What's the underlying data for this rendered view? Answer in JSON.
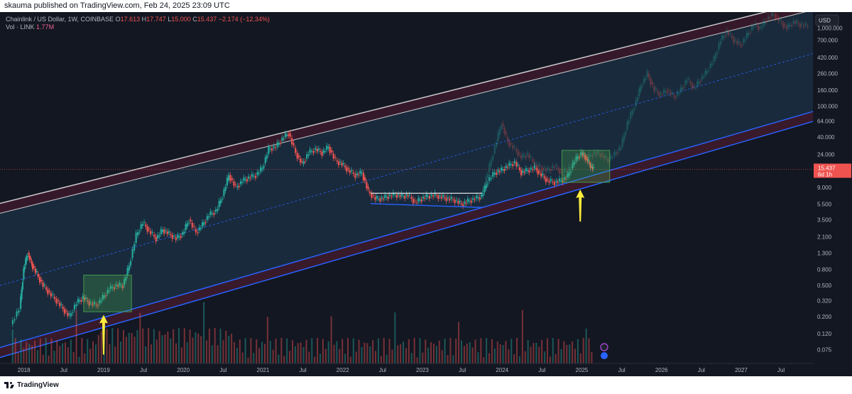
{
  "header": {
    "published": "skauma published on TradingView.com, Feb 24, 2025 23:09 UTC"
  },
  "legend": {
    "symbol": "Chainlink / US Dollar, 1W, COINBASE",
    "open_label": "O",
    "open": "17.613",
    "high_label": "H",
    "high": "17.747",
    "low_label": "L",
    "low": "15.000",
    "close_label": "C",
    "close": "15.437",
    "change": "−2.174 (−12.34%)",
    "vol_label": "Vol · LINK",
    "vol": "1.77M"
  },
  "price_axis": {
    "currency": "USD",
    "last_price": "15.437",
    "countdown": "6d 1h"
  },
  "footer": {
    "brand": "TradingView"
  },
  "colors": {
    "background": "#131722",
    "up": "#26a69a",
    "down": "#ef5350",
    "channel_fill": "#1e3a52",
    "upper_band": "#3a1a2c",
    "lower_band": "#3a1a2c",
    "support_line": "#2962ff",
    "arrow": "#ffeb3b",
    "box": "#4caf50",
    "projection": "#9aa3ab"
  },
  "chart_data": {
    "type": "candlestick",
    "scale": "log",
    "x_ticks": [
      "2018",
      "Jul",
      "2019",
      "Jul",
      "2020",
      "Jul",
      "2021",
      "Jul",
      "2022",
      "Jul",
      "2023",
      "Jul",
      "2024",
      "Jul",
      "2025",
      "Jul",
      "2026",
      "Jul",
      "2027",
      "Jul"
    ],
    "y_ticks": [
      "1,000.000",
      "700.000",
      "420.000",
      "260.000",
      "160.000",
      "100.000",
      "64.000",
      "40.000",
      "24.000",
      "15.000",
      "9.000",
      "5.500",
      "3.500",
      "2.100",
      "1.300",
      "0.800",
      "0.500",
      "0.320",
      "0.200",
      "0.120",
      "0.075"
    ],
    "ylim": [
      0.05,
      1600
    ],
    "xlim": [
      2017.7,
      2027.9
    ],
    "last_price": 15.437,
    "series": [
      {
        "name": "history",
        "points": [
          [
            2017.85,
            0.16
          ],
          [
            2017.95,
            0.25
          ],
          [
            2018.0,
            0.8
          ],
          [
            2018.05,
            1.3
          ],
          [
            2018.1,
            0.95
          ],
          [
            2018.17,
            0.7
          ],
          [
            2018.25,
            0.5
          ],
          [
            2018.33,
            0.4
          ],
          [
            2018.42,
            0.32
          ],
          [
            2018.5,
            0.25
          ],
          [
            2018.58,
            0.2
          ],
          [
            2018.67,
            0.3
          ],
          [
            2018.75,
            0.35
          ],
          [
            2018.83,
            0.3
          ],
          [
            2018.92,
            0.28
          ],
          [
            2019.0,
            0.35
          ],
          [
            2019.08,
            0.45
          ],
          [
            2019.17,
            0.5
          ],
          [
            2019.25,
            0.5
          ],
          [
            2019.33,
            0.9
          ],
          [
            2019.42,
            2.2
          ],
          [
            2019.5,
            3.2
          ],
          [
            2019.58,
            2.5
          ],
          [
            2019.67,
            2.0
          ],
          [
            2019.75,
            2.6
          ],
          [
            2019.83,
            2.3
          ],
          [
            2019.92,
            2.0
          ],
          [
            2020.0,
            2.3
          ],
          [
            2020.08,
            3.5
          ],
          [
            2020.17,
            2.4
          ],
          [
            2020.25,
            3.0
          ],
          [
            2020.33,
            4.0
          ],
          [
            2020.42,
            4.5
          ],
          [
            2020.5,
            7.0
          ],
          [
            2020.58,
            13.0
          ],
          [
            2020.67,
            9.0
          ],
          [
            2020.75,
            11.0
          ],
          [
            2020.83,
            12.0
          ],
          [
            2020.92,
            13.0
          ],
          [
            2021.0,
            16.0
          ],
          [
            2021.08,
            28.0
          ],
          [
            2021.17,
            30.0
          ],
          [
            2021.25,
            38.0
          ],
          [
            2021.33,
            45.0
          ],
          [
            2021.42,
            25.0
          ],
          [
            2021.5,
            18.0
          ],
          [
            2021.58,
            25.0
          ],
          [
            2021.67,
            28.0
          ],
          [
            2021.75,
            25.0
          ],
          [
            2021.83,
            30.0
          ],
          [
            2021.92,
            20.0
          ],
          [
            2022.0,
            18.0
          ],
          [
            2022.08,
            15.0
          ],
          [
            2022.17,
            13.0
          ],
          [
            2022.25,
            14.0
          ],
          [
            2022.33,
            8.0
          ],
          [
            2022.42,
            6.5
          ],
          [
            2022.5,
            6.5
          ],
          [
            2022.58,
            7.0
          ],
          [
            2022.67,
            7.3
          ],
          [
            2022.75,
            7.0
          ],
          [
            2022.83,
            7.2
          ],
          [
            2022.92,
            5.8
          ],
          [
            2023.0,
            6.5
          ],
          [
            2023.08,
            7.0
          ],
          [
            2023.17,
            7.2
          ],
          [
            2023.25,
            6.8
          ],
          [
            2023.33,
            6.5
          ],
          [
            2023.42,
            6.2
          ],
          [
            2023.5,
            5.5
          ],
          [
            2023.58,
            6.0
          ],
          [
            2023.67,
            6.5
          ],
          [
            2023.75,
            7.0
          ],
          [
            2023.83,
            11.0
          ],
          [
            2023.92,
            14.0
          ],
          [
            2024.0,
            15.0
          ],
          [
            2024.08,
            17.0
          ],
          [
            2024.17,
            19.0
          ],
          [
            2024.25,
            14.0
          ],
          [
            2024.33,
            15.0
          ],
          [
            2024.42,
            16.0
          ],
          [
            2024.5,
            13.0
          ],
          [
            2024.58,
            11.0
          ],
          [
            2024.67,
            10.5
          ],
          [
            2024.75,
            11.0
          ],
          [
            2024.83,
            12.5
          ],
          [
            2024.92,
            20.0
          ],
          [
            2025.0,
            25.0
          ],
          [
            2025.05,
            22.0
          ],
          [
            2025.1,
            18.0
          ],
          [
            2025.15,
            15.44
          ]
        ]
      },
      {
        "name": "projection",
        "points": [
          [
            2023.75,
            7.5
          ],
          [
            2023.83,
            14.0
          ],
          [
            2023.92,
            30.0
          ],
          [
            2024.0,
            60.0
          ],
          [
            2024.08,
            35.0
          ],
          [
            2024.17,
            28.0
          ],
          [
            2024.25,
            22.0
          ],
          [
            2024.33,
            24.0
          ],
          [
            2024.42,
            18.0
          ],
          [
            2024.5,
            16.0
          ],
          [
            2024.58,
            15.0
          ],
          [
            2024.67,
            17.0
          ],
          [
            2024.75,
            14.0
          ],
          [
            2024.83,
            15.0
          ],
          [
            2024.92,
            20.0
          ],
          [
            2025.0,
            23.0
          ],
          [
            2025.08,
            22.0
          ],
          [
            2025.17,
            25.0
          ],
          [
            2025.25,
            24.0
          ],
          [
            2025.33,
            20.0
          ],
          [
            2025.42,
            24.0
          ],
          [
            2025.5,
            30.0
          ],
          [
            2025.58,
            60.0
          ],
          [
            2025.67,
            100.0
          ],
          [
            2025.75,
            180.0
          ],
          [
            2025.83,
            260.0
          ],
          [
            2025.92,
            160.0
          ],
          [
            2026.0,
            140.0
          ],
          [
            2026.08,
            160.0
          ],
          [
            2026.17,
            130.0
          ],
          [
            2026.25,
            160.0
          ],
          [
            2026.33,
            220.0
          ],
          [
            2026.42,
            170.0
          ],
          [
            2026.5,
            220.0
          ],
          [
            2026.58,
            280.0
          ],
          [
            2026.67,
            400.0
          ],
          [
            2026.75,
            700.0
          ],
          [
            2026.83,
            900.0
          ],
          [
            2026.92,
            700.0
          ],
          [
            2027.0,
            600.0
          ],
          [
            2027.08,
            800.0
          ],
          [
            2027.17,
            1100.0
          ],
          [
            2027.25,
            1000.0
          ],
          [
            2027.33,
            1300.0
          ],
          [
            2027.42,
            1500.0
          ],
          [
            2027.5,
            1200.0
          ],
          [
            2027.58,
            1000.0
          ],
          [
            2027.67,
            1200.0
          ],
          [
            2027.75,
            1100.0
          ],
          [
            2027.85,
            1050.0
          ]
        ]
      }
    ],
    "channel": {
      "upper": [
        [
          2017.7,
          4.2
        ],
        [
          2027.9,
          1700
        ]
      ],
      "mid": [
        [
          2017.7,
          0.5
        ],
        [
          2027.9,
          470
        ]
      ],
      "lower": [
        [
          2017.7,
          0.08
        ],
        [
          2027.9,
          85
        ]
      ]
    },
    "triangle": {
      "top": [
        [
          2022.35,
          7.6
        ],
        [
          2023.75,
          7.6
        ]
      ],
      "bottom": [
        [
          2022.35,
          5.6
        ],
        [
          2023.75,
          5.0
        ]
      ]
    },
    "boxes": [
      {
        "x0": 2018.75,
        "x1": 2019.35,
        "y0": 0.23,
        "y1": 0.68
      },
      {
        "x0": 2024.75,
        "x1": 2025.35,
        "y0": 10.5,
        "y1": 27
      }
    ],
    "arrows": [
      {
        "x": 2019.0,
        "y_tip": 0.21,
        "y_tail": 0.065
      },
      {
        "x": 2024.98,
        "y_tip": 8.5,
        "y_tail": 3.3
      }
    ],
    "volume_note": "volume bars (red/green) along bottom"
  }
}
